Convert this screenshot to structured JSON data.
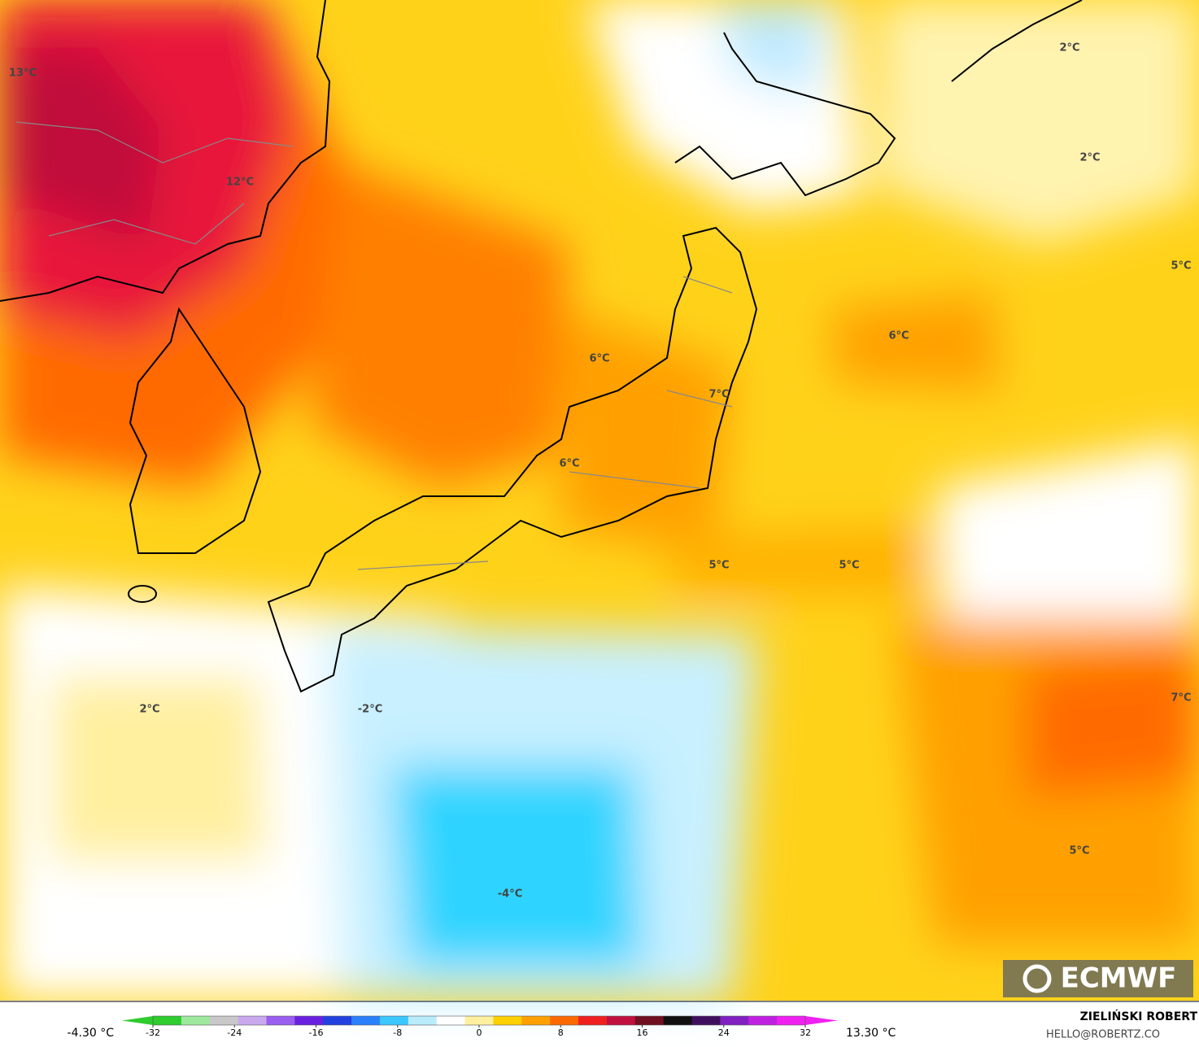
{
  "map": {
    "labels": [
      "13°C",
      "12°C",
      "2°C",
      "2°C",
      "5°C",
      "6°C",
      "6°C",
      "7°C",
      "6°C",
      "5°C",
      "5°C",
      "7°C",
      "2°C",
      "-2°C",
      "5°C",
      "-4°C"
    ],
    "logo": "ECMWF"
  },
  "colorbar": {
    "min_label": "-4.30 °C",
    "max_label": "13.30 °C",
    "lim": [
      -32,
      32
    ],
    "ticks": [
      -32,
      -24,
      -16,
      -8,
      0,
      8,
      16,
      24,
      32
    ],
    "colors": [
      "#2ecc2e",
      "#9ee89e",
      "#c8c8c8",
      "#c9a8ee",
      "#9a5ef0",
      "#6a20e0",
      "#2040e0",
      "#2a80ff",
      "#3ac8ff",
      "#b8ecfb",
      "#ffffff",
      "#fff0a0",
      "#ffd000",
      "#ffa000",
      "#ff6a00",
      "#f02020",
      "#c01040",
      "#701020",
      "#101010",
      "#401060",
      "#8020c0",
      "#c020e0",
      "#f020f0"
    ]
  },
  "credits": {
    "author": "ZIELIŃSKI ROBERT",
    "contact": "HELLO@ROBERTZ.CO"
  }
}
